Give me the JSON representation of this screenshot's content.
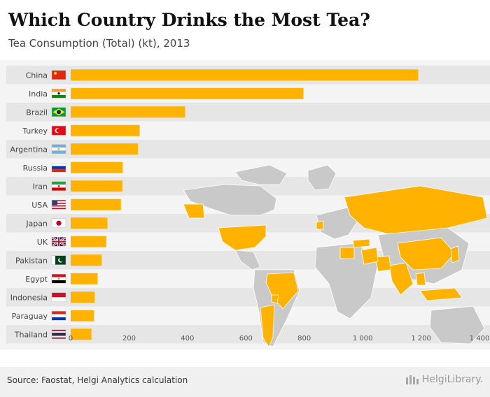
{
  "header": {
    "title": "Which Country Drinks the Most Tea?",
    "subtitle": "Tea Consumption (Total) (kt), 2013"
  },
  "footer": {
    "source": "Source: Faostat, Helgi Analytics calculation",
    "brand": "HelgiLibrary."
  },
  "colors": {
    "bar": "#ffb300",
    "map_highlight": "#ffb300",
    "map_land": "#c9c9c9",
    "row_alt": "#e6e6e6",
    "axis_text": "#555555"
  },
  "chart_data": {
    "type": "bar",
    "orientation": "horizontal",
    "title": "Which Country Drinks the Most Tea?",
    "subtitle": "Tea Consumption (Total) (kt), 2013",
    "categories": [
      "China",
      "India",
      "Brazil",
      "Turkey",
      "Argentina",
      "Russia",
      "Iran",
      "USA",
      "Japan",
      "UK",
      "Pakistan",
      "Egypt",
      "Indonesia",
      "Paraguay",
      "Thailand"
    ],
    "values": [
      1190,
      797,
      392,
      236,
      230,
      178,
      177,
      172,
      126,
      122,
      106,
      92,
      82,
      80,
      71
    ],
    "flags": [
      "flag-china",
      "flag-india",
      "flag-brazil",
      "flag-turkey",
      "flag-argentina",
      "flag-russia",
      "flag-iran",
      "flag-usa",
      "flag-japan",
      "flag-uk",
      "flag-pakistan",
      "flag-egypt",
      "flag-indonesia",
      "flag-paraguay",
      "flag-thailand"
    ],
    "xlim": [
      0,
      1400
    ],
    "xticks": [
      0,
      200,
      400,
      600,
      800,
      1000,
      1200,
      1400
    ],
    "xtick_labels": [
      "0",
      "200",
      "400",
      "600",
      "800",
      "1 000",
      "1 200",
      "1 400"
    ],
    "xlabel": "",
    "ylabel": "",
    "grid": true
  }
}
